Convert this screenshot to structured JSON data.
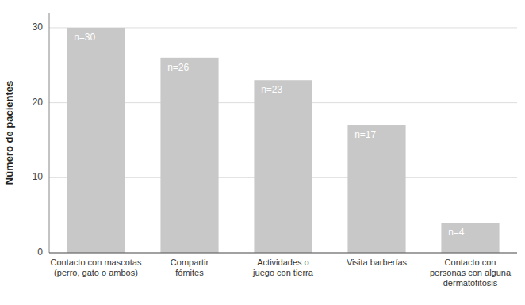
{
  "chart_data": {
    "type": "bar",
    "categories": [
      "Contacto con mascotas\n(perro, gato o ambos)",
      "Compartir\nfómites",
      "Actividades o\njuego con tierra",
      "Visita barberías",
      "Contacto con\npersonas con alguna\ndermatofitosis"
    ],
    "values": [
      30,
      26,
      23,
      17,
      4
    ],
    "value_labels": [
      "n=30",
      "n=26",
      "n=23",
      "n=17",
      "n=4"
    ],
    "data_labels": true,
    "color": "#c8c8c8",
    "y_label": "Número de pacientes",
    "ylim": [
      0,
      32
    ],
    "yticks": [
      0,
      10,
      20,
      30
    ],
    "grid": true
  }
}
